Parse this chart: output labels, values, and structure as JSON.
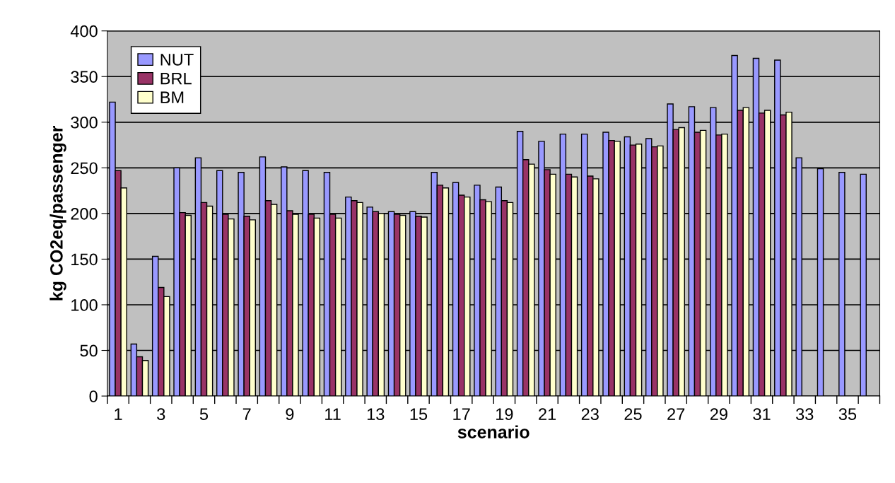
{
  "chart_data": {
    "type": "bar",
    "xlabel": "scenario",
    "ylabel": "kg CO2eq/passenger",
    "categories": [
      "1",
      null,
      "3",
      null,
      "5",
      null,
      "7",
      null,
      "9",
      null,
      "11",
      null,
      "13",
      null,
      "15",
      null,
      "17",
      null,
      "19",
      null,
      "21",
      null,
      "23",
      null,
      "25",
      null,
      "27",
      null,
      "29",
      null,
      "31",
      null,
      "33",
      null,
      "35",
      null
    ],
    "series": [
      {
        "name": "NUT",
        "color": "#9999ff",
        "values": [
          322,
          57,
          153,
          250,
          261,
          247,
          245,
          262,
          251,
          247,
          245,
          218,
          207,
          202,
          202,
          245,
          234,
          231,
          229,
          290,
          279,
          287,
          287,
          289,
          284,
          282,
          320,
          317,
          316,
          373,
          370,
          368,
          261,
          249,
          245,
          243
        ]
      },
      {
        "name": "BRL",
        "color": "#993366",
        "values": [
          247,
          43,
          119,
          201,
          212,
          199,
          197,
          214,
          203,
          199,
          199,
          214,
          202,
          199,
          197,
          231,
          220,
          215,
          214,
          259,
          248,
          243,
          241,
          280,
          275,
          273,
          292,
          289,
          286,
          313,
          310,
          308,
          null,
          null,
          null,
          null
        ]
      },
      {
        "name": "BM",
        "color": "#ffffcc",
        "values": [
          228,
          39,
          109,
          198,
          208,
          194,
          193,
          210,
          199,
          195,
          195,
          212,
          200,
          198,
          196,
          228,
          218,
          213,
          212,
          254,
          243,
          240,
          238,
          279,
          276,
          274,
          294,
          291,
          287,
          316,
          313,
          311,
          null,
          null,
          null,
          null
        ]
      }
    ],
    "ylim": [
      0,
      400
    ],
    "yticks": [
      0,
      50,
      100,
      150,
      200,
      250,
      300,
      350,
      400
    ],
    "grid": "y",
    "legend": "top left"
  }
}
